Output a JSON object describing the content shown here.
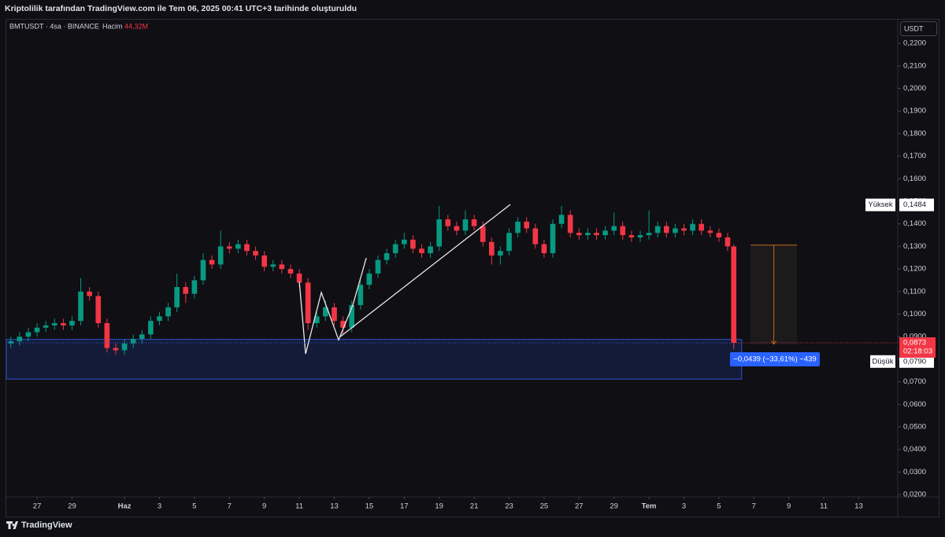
{
  "header": {
    "title": "Kriptolilik tarafından TradingView.com ile Tem 06, 2025 00:41 UTC+3 tarihinde oluşturuldu"
  },
  "chart_data": {
    "type": "candlestick",
    "symbol": "BMTUSDT · 4sa · BINANCE",
    "volume_label": "Hacim",
    "volume_value": "44,32M",
    "currency": "USDT",
    "x": [
      -1.5,
      -1,
      -0.5,
      0,
      0.5,
      1,
      1.5,
      2,
      2.5,
      3,
      3.5,
      4,
      4.5,
      5,
      5.5,
      6,
      6.5,
      7,
      7.5,
      8,
      8.5,
      9,
      9.5,
      10,
      10.5,
      11,
      11.5,
      12,
      12.5,
      13,
      13.5,
      14,
      14.5,
      15,
      15.5,
      16,
      16.5,
      17,
      17.5,
      18,
      18.5,
      19,
      19.5,
      20,
      20.5,
      21,
      21.5,
      22,
      22.5,
      23,
      23.5,
      24,
      24.5,
      25,
      25.5,
      26,
      26.5,
      27,
      27.5,
      28,
      28.5,
      29,
      29.5,
      30,
      30.5,
      31,
      31.5,
      32,
      32.5,
      33,
      33.5,
      34,
      34.5,
      35,
      35.5,
      36,
      36.5,
      37,
      37.5,
      38,
      38.5,
      39,
      39.5,
      39.85
    ],
    "open": [
      0.087,
      0.088,
      0.09,
      0.092,
      0.094,
      0.095,
      0.096,
      0.095,
      0.097,
      0.11,
      0.108,
      0.096,
      0.085,
      0.084,
      0.087,
      0.089,
      0.091,
      0.097,
      0.099,
      0.103,
      0.112,
      0.109,
      0.115,
      0.124,
      0.122,
      0.13,
      0.129,
      0.131,
      0.128,
      0.126,
      0.121,
      0.122,
      0.12,
      0.118,
      0.114,
      0.096,
      0.099,
      0.103,
      0.097,
      0.094,
      0.104,
      0.113,
      0.118,
      0.124,
      0.127,
      0.131,
      0.133,
      0.129,
      0.127,
      0.13,
      0.142,
      0.139,
      0.137,
      0.142,
      0.139,
      0.132,
      0.126,
      0.128,
      0.136,
      0.141,
      0.138,
      0.131,
      0.127,
      0.14,
      0.144,
      0.136,
      0.135,
      0.136,
      0.135,
      0.137,
      0.139,
      0.135,
      0.134,
      0.135,
      0.136,
      0.139,
      0.136,
      0.138,
      0.137,
      0.14,
      0.137,
      0.136,
      0.134,
      0.13
    ],
    "high": [
      0.09,
      0.092,
      0.094,
      0.096,
      0.097,
      0.098,
      0.098,
      0.099,
      0.116,
      0.112,
      0.11,
      0.098,
      0.087,
      0.089,
      0.091,
      0.093,
      0.099,
      0.101,
      0.105,
      0.118,
      0.114,
      0.117,
      0.127,
      0.126,
      0.137,
      0.132,
      0.133,
      0.133,
      0.13,
      0.128,
      0.124,
      0.124,
      0.122,
      0.12,
      0.116,
      0.101,
      0.106,
      0.105,
      0.099,
      0.106,
      0.115,
      0.12,
      0.126,
      0.129,
      0.133,
      0.136,
      0.135,
      0.131,
      0.132,
      0.148,
      0.144,
      0.141,
      0.146,
      0.144,
      0.141,
      0.134,
      0.13,
      0.138,
      0.143,
      0.143,
      0.14,
      0.133,
      0.142,
      0.148,
      0.146,
      0.138,
      0.138,
      0.138,
      0.139,
      0.145,
      0.141,
      0.137,
      0.137,
      0.146,
      0.141,
      0.141,
      0.14,
      0.14,
      0.142,
      0.142,
      0.139,
      0.138,
      0.136,
      0.131
    ],
    "low": [
      0.085,
      0.086,
      0.088,
      0.09,
      0.092,
      0.093,
      0.093,
      0.093,
      0.095,
      0.106,
      0.094,
      0.083,
      0.082,
      0.082,
      0.085,
      0.087,
      0.089,
      0.095,
      0.097,
      0.101,
      0.105,
      0.107,
      0.113,
      0.12,
      0.12,
      0.127,
      0.127,
      0.126,
      0.124,
      0.119,
      0.119,
      0.118,
      0.116,
      0.112,
      0.093,
      0.094,
      0.097,
      0.095,
      0.091,
      0.092,
      0.102,
      0.111,
      0.116,
      0.122,
      0.125,
      0.129,
      0.127,
      0.125,
      0.125,
      0.128,
      0.137,
      0.135,
      0.135,
      0.137,
      0.13,
      0.122,
      0.122,
      0.126,
      0.134,
      0.136,
      0.129,
      0.125,
      0.125,
      0.138,
      0.134,
      0.133,
      0.133,
      0.133,
      0.133,
      0.135,
      0.133,
      0.132,
      0.132,
      0.133,
      0.134,
      0.134,
      0.134,
      0.135,
      0.135,
      0.135,
      0.134,
      0.132,
      0.128,
      0.0845
    ],
    "close": [
      0.088,
      0.09,
      0.092,
      0.094,
      0.095,
      0.096,
      0.095,
      0.097,
      0.11,
      0.108,
      0.096,
      0.085,
      0.084,
      0.087,
      0.089,
      0.091,
      0.097,
      0.099,
      0.103,
      0.112,
      0.109,
      0.115,
      0.124,
      0.122,
      0.13,
      0.129,
      0.131,
      0.128,
      0.126,
      0.121,
      0.122,
      0.12,
      0.118,
      0.114,
      0.096,
      0.099,
      0.103,
      0.097,
      0.094,
      0.104,
      0.113,
      0.118,
      0.124,
      0.127,
      0.131,
      0.133,
      0.129,
      0.127,
      0.13,
      0.142,
      0.139,
      0.137,
      0.142,
      0.139,
      0.132,
      0.126,
      0.128,
      0.136,
      0.141,
      0.138,
      0.131,
      0.127,
      0.14,
      0.144,
      0.136,
      0.135,
      0.136,
      0.135,
      0.137,
      0.139,
      0.135,
      0.134,
      0.135,
      0.136,
      0.139,
      0.136,
      0.138,
      0.137,
      0.14,
      0.137,
      0.136,
      0.134,
      0.13,
      0.0873
    ],
    "up_color": "#089981",
    "down_color": "#f23645",
    "xlim": [
      -1.76,
      49.23
    ],
    "ylim": [
      0.019,
      0.2305
    ],
    "xticks": [
      {
        "value": 0,
        "label": "27"
      },
      {
        "value": 2,
        "label": "29"
      },
      {
        "value": 5,
        "label": "Haz"
      },
      {
        "value": 7,
        "label": "3"
      },
      {
        "value": 9,
        "label": "5"
      },
      {
        "value": 11,
        "label": "7"
      },
      {
        "value": 13,
        "label": "9"
      },
      {
        "value": 15,
        "label": "11"
      },
      {
        "value": 17,
        "label": "13"
      },
      {
        "value": 19,
        "label": "15"
      },
      {
        "value": 21,
        "label": "17"
      },
      {
        "value": 23,
        "label": "19"
      },
      {
        "value": 25,
        "label": "21"
      },
      {
        "value": 27,
        "label": "23"
      },
      {
        "value": 29,
        "label": "25"
      },
      {
        "value": 31,
        "label": "27"
      },
      {
        "value": 33,
        "label": "29"
      },
      {
        "value": 35,
        "label": "Tem"
      },
      {
        "value": 37,
        "label": "3"
      },
      {
        "value": 39,
        "label": "5"
      },
      {
        "value": 41,
        "label": "7"
      },
      {
        "value": 43,
        "label": "9"
      },
      {
        "value": 45,
        "label": "11"
      },
      {
        "value": 47,
        "label": "13"
      }
    ],
    "yticks": [
      {
        "value": 0.02,
        "label": "0,0200"
      },
      {
        "value": 0.03,
        "label": "0,0300"
      },
      {
        "value": 0.04,
        "label": "0,0400"
      },
      {
        "value": 0.05,
        "label": "0,0500"
      },
      {
        "value": 0.06,
        "label": "0,0600"
      },
      {
        "value": 0.07,
        "label": "0,0700"
      },
      {
        "value": 0.08,
        "label": "0,0800"
      },
      {
        "value": 0.09,
        "label": "0,0900"
      },
      {
        "value": 0.1,
        "label": "0,1000"
      },
      {
        "value": 0.11,
        "label": "0,1100"
      },
      {
        "value": 0.12,
        "label": "0,1200"
      },
      {
        "value": 0.13,
        "label": "0,1300"
      },
      {
        "value": 0.14,
        "label": "0,1400"
      },
      {
        "value": 0.15,
        "label": "0,1500"
      },
      {
        "value": 0.16,
        "label": "0,1600"
      },
      {
        "value": 0.17,
        "label": "0,1700"
      },
      {
        "value": 0.18,
        "label": "0,1800"
      },
      {
        "value": 0.19,
        "label": "0,1900"
      },
      {
        "value": 0.2,
        "label": "0,2000"
      },
      {
        "value": 0.21,
        "label": "0,2100"
      },
      {
        "value": 0.22,
        "label": "0,2200"
      }
    ],
    "grid": false,
    "last_price": {
      "value": 0.0873,
      "label": "0,0873",
      "countdown": "02:18:03"
    },
    "high_marker": {
      "label": "Yüksek",
      "value": 0.1484,
      "value_label": "0,1484"
    },
    "low_marker": {
      "label": "Düşük",
      "value": 0.079,
      "value_label": "0,0790"
    },
    "zone": {
      "x": [
        -1.76,
        40.3
      ],
      "y": [
        0.0712,
        0.0888
      ]
    },
    "zigzag": {
      "x": [
        15.0,
        15.36,
        16.26,
        17.25,
        18.06,
        18.83
      ],
      "y": [
        0.1144,
        0.0824,
        0.1096,
        0.0886,
        0.104,
        0.1249
      ]
    },
    "trendline": {
      "x": [
        17.34,
        27.07
      ],
      "y": [
        0.09,
        0.1486
      ]
    },
    "measure": {
      "x": [
        40.81,
        43.47
      ],
      "y": [
        0.1306,
        0.0867
      ],
      "label": "−0,0439 (−33,61%) −439"
    }
  },
  "footer": {
    "brand": "TradingView"
  }
}
